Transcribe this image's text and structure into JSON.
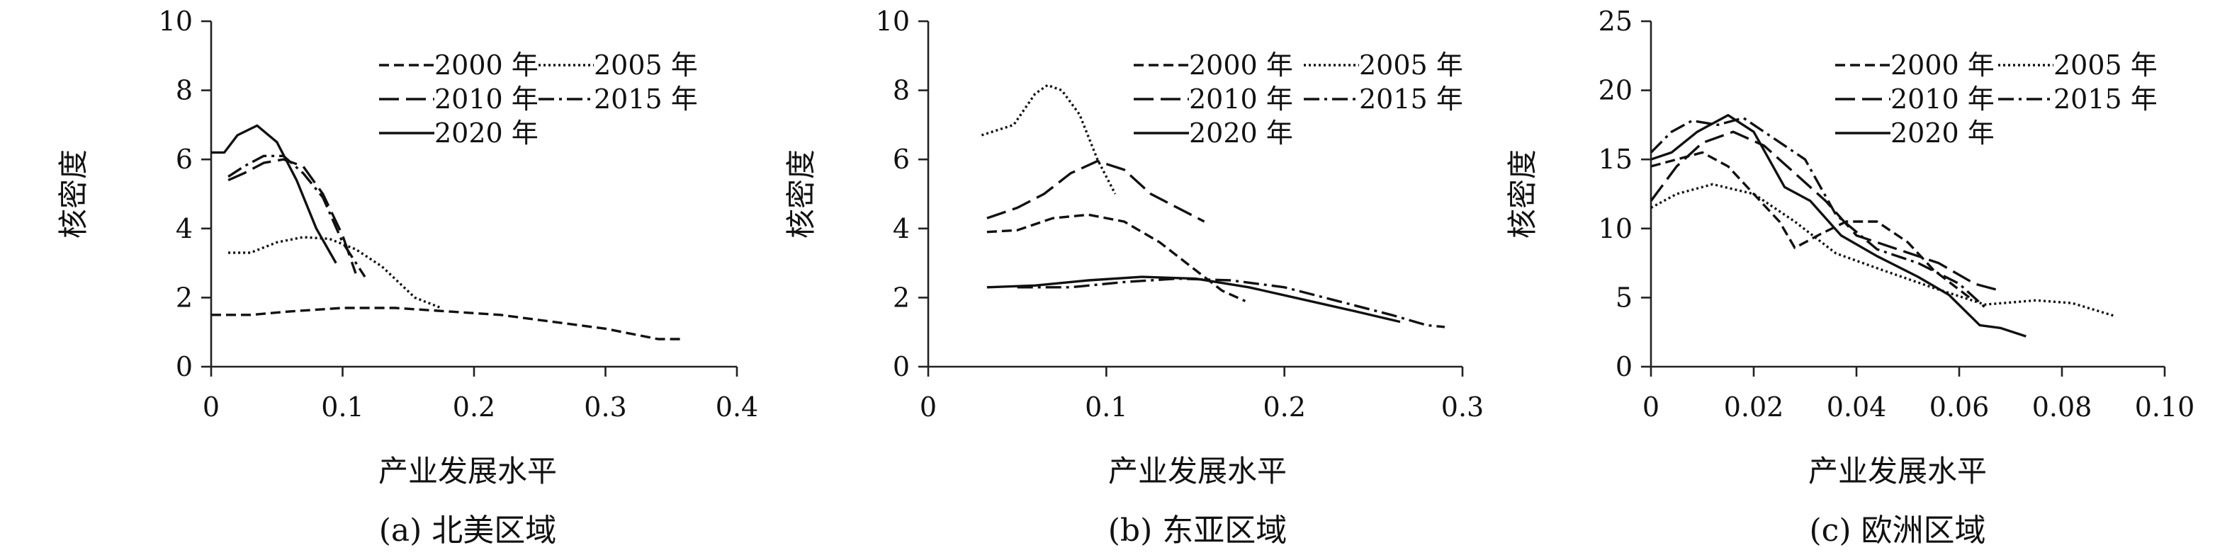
{
  "figure": {
    "series_styles": [
      {
        "name": "2000 年",
        "dash": "14 7"
      },
      {
        "name": "2005 年",
        "dash": "3 4"
      },
      {
        "name": "2010 年",
        "dash": "28 10"
      },
      {
        "name": "2015 年",
        "dash": "22 7 4 7"
      },
      {
        "name": "2020 年",
        "dash": ""
      }
    ],
    "line_color": "#111111"
  },
  "chart_data": [
    {
      "type": "line",
      "caption": "(a) 北美区域",
      "xlabel": "产业发展水平",
      "ylabel": "核密度",
      "xlim": [
        0,
        0.4
      ],
      "ylim": [
        0,
        10
      ],
      "xticks": [
        "0",
        "0.1",
        "0.2",
        "0.3",
        "0.4"
      ],
      "yticks": [
        "0",
        "2",
        "4",
        "6",
        "8",
        "10"
      ],
      "legend_location": "top-right",
      "series": [
        {
          "name": "2000 年",
          "x": [
            0.0,
            0.03,
            0.06,
            0.1,
            0.14,
            0.18,
            0.22,
            0.26,
            0.3,
            0.34,
            0.36
          ],
          "y": [
            1.5,
            1.5,
            1.6,
            1.7,
            1.7,
            1.6,
            1.5,
            1.3,
            1.1,
            0.8,
            0.8
          ]
        },
        {
          "name": "2005 年",
          "x": [
            0.013,
            0.03,
            0.05,
            0.07,
            0.09,
            0.11,
            0.13,
            0.155,
            0.175
          ],
          "y": [
            3.3,
            3.3,
            3.6,
            3.75,
            3.7,
            3.4,
            2.9,
            2.0,
            1.7
          ]
        },
        {
          "name": "2010 年",
          "x": [
            0.013,
            0.025,
            0.04,
            0.055,
            0.07,
            0.085,
            0.1,
            0.11
          ],
          "y": [
            5.4,
            5.6,
            5.9,
            6.0,
            5.8,
            5.0,
            3.8,
            2.7
          ]
        },
        {
          "name": "2015 年",
          "x": [
            0.013,
            0.025,
            0.04,
            0.055,
            0.07,
            0.085,
            0.1,
            0.117
          ],
          "y": [
            5.5,
            5.8,
            6.1,
            6.1,
            5.6,
            4.9,
            3.6,
            2.6
          ]
        },
        {
          "name": "2020 年",
          "x": [
            0.0,
            0.01,
            0.02,
            0.035,
            0.05,
            0.065,
            0.08,
            0.095
          ],
          "y": [
            6.2,
            6.2,
            6.7,
            6.98,
            6.5,
            5.4,
            4.0,
            3.0
          ]
        }
      ]
    },
    {
      "type": "line",
      "caption": "(b) 东亚区域",
      "xlabel": "产业发展水平",
      "ylabel": "核密度",
      "xlim": [
        0,
        0.3
      ],
      "ylim": [
        0,
        10
      ],
      "xticks": [
        "0",
        "0.1",
        "0.2",
        "0.3"
      ],
      "yticks": [
        "0",
        "2",
        "4",
        "6",
        "8",
        "10"
      ],
      "legend_location": "top-right",
      "series": [
        {
          "name": "2000 年",
          "x": [
            0.033,
            0.05,
            0.07,
            0.09,
            0.11,
            0.13,
            0.15,
            0.165,
            0.178
          ],
          "y": [
            3.9,
            3.95,
            4.3,
            4.4,
            4.2,
            3.6,
            2.8,
            2.2,
            1.9
          ]
        },
        {
          "name": "2005 年",
          "x": [
            0.03,
            0.048,
            0.06,
            0.067,
            0.075,
            0.085,
            0.095,
            0.105
          ],
          "y": [
            6.7,
            7.0,
            7.9,
            8.15,
            8.0,
            7.3,
            6.0,
            5.0
          ]
        },
        {
          "name": "2010 年",
          "x": [
            0.033,
            0.05,
            0.065,
            0.08,
            0.095,
            0.11,
            0.125,
            0.14,
            0.155
          ],
          "y": [
            4.3,
            4.6,
            5.0,
            5.6,
            5.95,
            5.7,
            5.0,
            4.6,
            4.2
          ]
        },
        {
          "name": "2015 年",
          "x": [
            0.05,
            0.08,
            0.11,
            0.14,
            0.17,
            0.2,
            0.23,
            0.26,
            0.28,
            0.29
          ],
          "y": [
            2.3,
            2.3,
            2.45,
            2.55,
            2.5,
            2.3,
            1.9,
            1.5,
            1.2,
            1.15
          ]
        },
        {
          "name": "2020 年",
          "x": [
            0.033,
            0.06,
            0.09,
            0.12,
            0.15,
            0.18,
            0.21,
            0.24,
            0.265
          ],
          "y": [
            2.3,
            2.35,
            2.5,
            2.6,
            2.55,
            2.3,
            1.95,
            1.6,
            1.3
          ]
        }
      ]
    },
    {
      "type": "line",
      "caption": "(c) 欧洲区域",
      "xlabel": "产业发展水平",
      "ylabel": "核密度",
      "xlim": [
        0,
        0.1
      ],
      "ylim": [
        0,
        25
      ],
      "xticks": [
        "0",
        "0.02",
        "0.04",
        "0.06",
        "0.08",
        "0.10"
      ],
      "yticks": [
        "0",
        "5",
        "10",
        "15",
        "20",
        "25"
      ],
      "legend_location": "top-right",
      "series": [
        {
          "name": "2000 年",
          "x": [
            0.0,
            0.005,
            0.01,
            0.015,
            0.02,
            0.025,
            0.028,
            0.033,
            0.038,
            0.044,
            0.05,
            0.055,
            0.062
          ],
          "y": [
            14.5,
            15.0,
            15.5,
            14.5,
            12.5,
            10.5,
            8.6,
            9.6,
            10.5,
            10.5,
            9.0,
            7.0,
            5.0
          ]
        },
        {
          "name": "2005 年",
          "x": [
            0.0,
            0.005,
            0.012,
            0.02,
            0.028,
            0.036,
            0.045,
            0.055,
            0.065,
            0.075,
            0.082,
            0.09
          ],
          "y": [
            11.5,
            12.5,
            13.2,
            12.5,
            10.5,
            8.2,
            7.0,
            5.7,
            4.5,
            4.8,
            4.6,
            3.7
          ]
        },
        {
          "name": "2010 年",
          "x": [
            0.0,
            0.005,
            0.01,
            0.016,
            0.022,
            0.028,
            0.034,
            0.04,
            0.048,
            0.056,
            0.063,
            0.068
          ],
          "y": [
            12.0,
            14.5,
            16.2,
            17.0,
            16.0,
            14.0,
            12.0,
            9.5,
            8.5,
            7.5,
            6.0,
            5.5
          ]
        },
        {
          "name": "2015 年",
          "x": [
            0.0,
            0.004,
            0.008,
            0.013,
            0.018,
            0.024,
            0.03,
            0.036,
            0.044,
            0.052,
            0.06,
            0.065
          ],
          "y": [
            15.5,
            17.0,
            17.8,
            17.5,
            18.0,
            16.5,
            15.0,
            11.0,
            8.5,
            7.5,
            6.0,
            4.3
          ]
        },
        {
          "name": "2020 年",
          "x": [
            0.0,
            0.004,
            0.009,
            0.015,
            0.02,
            0.026,
            0.031,
            0.037,
            0.044,
            0.052,
            0.058,
            0.064,
            0.068,
            0.073
          ],
          "y": [
            15.0,
            15.5,
            17.0,
            18.2,
            17.0,
            13.0,
            12.0,
            9.5,
            8.0,
            6.5,
            5.2,
            3.0,
            2.8,
            2.2
          ]
        }
      ]
    }
  ]
}
